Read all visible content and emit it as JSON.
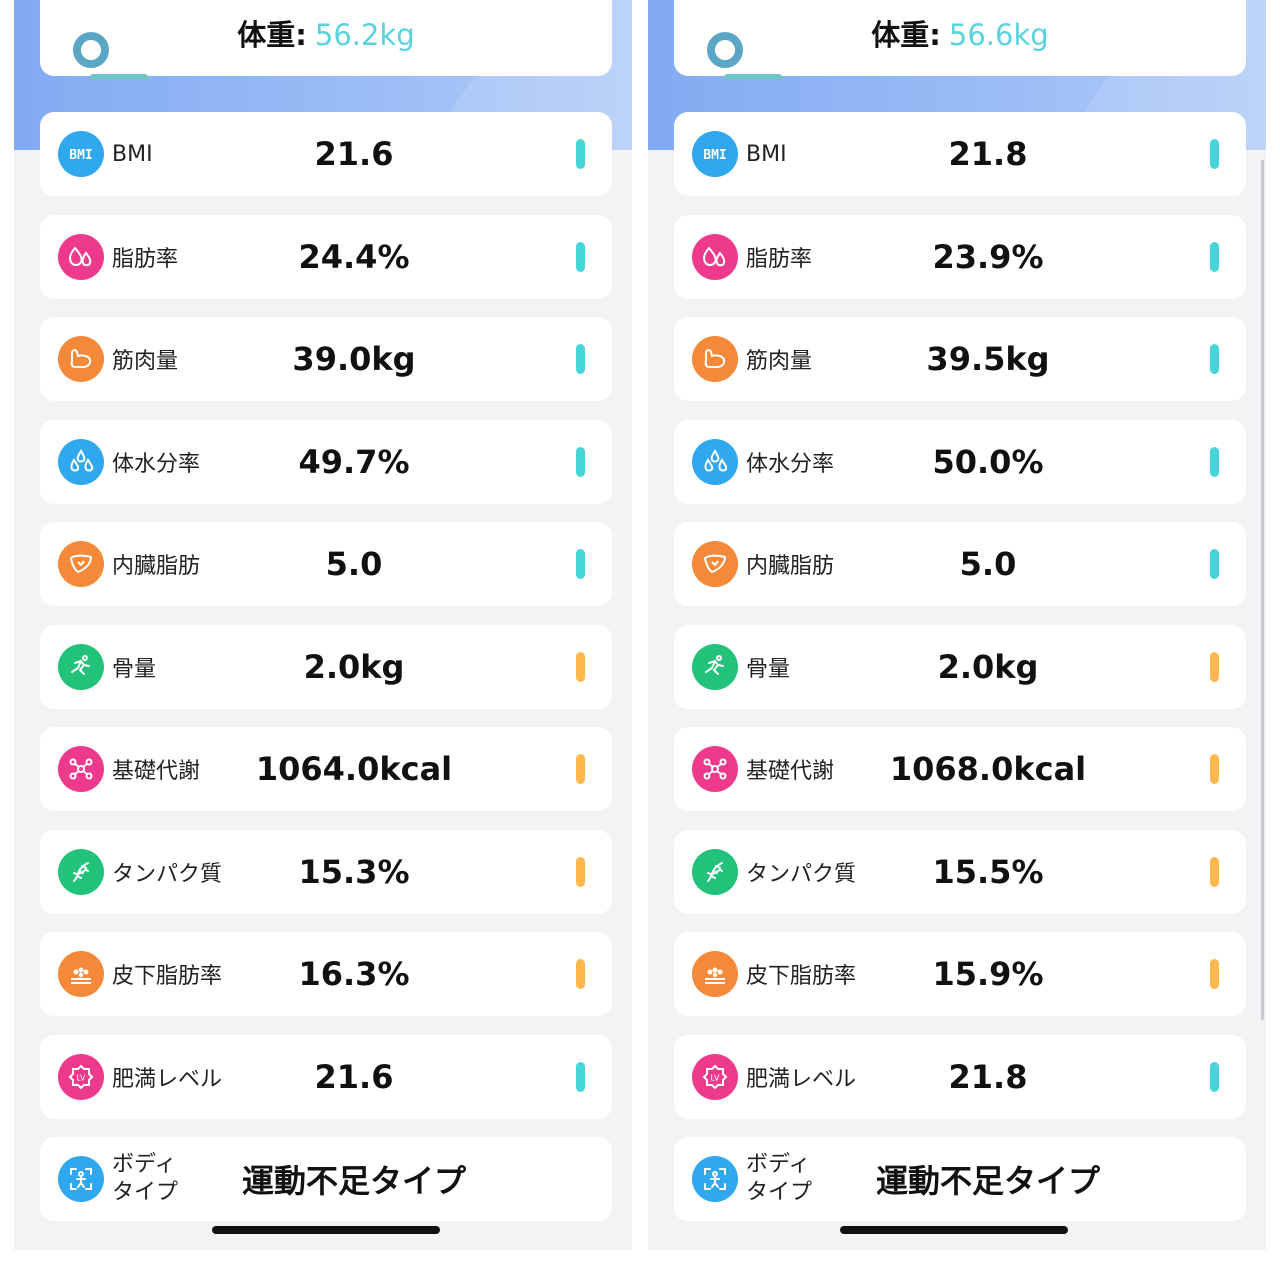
{
  "colors": {
    "accent_weight": "#5ad3de",
    "bar_normal": "#46d6da",
    "bar_warning": "#ffb84d",
    "header_gradient": "#8fb4f4"
  },
  "panels": [
    {
      "weight_label": "体重:",
      "weight_value": "56.2kg",
      "metrics": [
        {
          "label": "BMI",
          "value": "21.6",
          "icon": "bmi-icon",
          "icon_color": "#2fa8f0",
          "status": "teal"
        },
        {
          "label": "脂肪率",
          "value": "24.4%",
          "icon": "fat-drops-icon",
          "icon_color": "#ee3a8c",
          "status": "teal"
        },
        {
          "label": "筋肉量",
          "value": "39.0kg",
          "icon": "muscle-arm-icon",
          "icon_color": "#f5893a",
          "status": "teal"
        },
        {
          "label": "体水分率",
          "value": "49.7%",
          "icon": "water-drops-icon",
          "icon_color": "#2fa8f0",
          "status": "teal"
        },
        {
          "label": "内臓脂肪",
          "value": "5.0",
          "icon": "liver-icon",
          "icon_color": "#f5893a",
          "status": "teal"
        },
        {
          "label": "骨量",
          "value": "2.0kg",
          "icon": "bone-runner-icon",
          "icon_color": "#22c27a",
          "status": "orange"
        },
        {
          "label": "基礎代謝",
          "value": "1064.0kcal",
          "icon": "molecule-icon",
          "icon_color": "#ee3a8c",
          "status": "orange"
        },
        {
          "label": "タンパク質",
          "value": "15.3%",
          "icon": "dna-icon",
          "icon_color": "#22c27a",
          "status": "orange"
        },
        {
          "label": "皮下脂肪率",
          "value": "16.3%",
          "icon": "skin-layer-icon",
          "icon_color": "#f5893a",
          "status": "orange"
        },
        {
          "label": "肥満レベル",
          "value": "21.6",
          "icon": "level-badge-icon",
          "icon_color": "#ee3a8c",
          "status": "teal"
        },
        {
          "label_line1": "ボディ",
          "label_line2": "タイプ",
          "value": "運動不足タイプ",
          "icon": "body-scan-icon",
          "icon_color": "#2fa8f0",
          "status": "none"
        }
      ]
    },
    {
      "weight_label": "体重:",
      "weight_value": "56.6kg",
      "metrics": [
        {
          "label": "BMI",
          "value": "21.8",
          "icon": "bmi-icon",
          "icon_color": "#2fa8f0",
          "status": "teal"
        },
        {
          "label": "脂肪率",
          "value": "23.9%",
          "icon": "fat-drops-icon",
          "icon_color": "#ee3a8c",
          "status": "teal"
        },
        {
          "label": "筋肉量",
          "value": "39.5kg",
          "icon": "muscle-arm-icon",
          "icon_color": "#f5893a",
          "status": "teal"
        },
        {
          "label": "体水分率",
          "value": "50.0%",
          "icon": "water-drops-icon",
          "icon_color": "#2fa8f0",
          "status": "teal"
        },
        {
          "label": "内臓脂肪",
          "value": "5.0",
          "icon": "liver-icon",
          "icon_color": "#f5893a",
          "status": "teal"
        },
        {
          "label": "骨量",
          "value": "2.0kg",
          "icon": "bone-runner-icon",
          "icon_color": "#22c27a",
          "status": "orange"
        },
        {
          "label": "基礎代謝",
          "value": "1068.0kcal",
          "icon": "molecule-icon",
          "icon_color": "#ee3a8c",
          "status": "orange"
        },
        {
          "label": "タンパク質",
          "value": "15.5%",
          "icon": "dna-icon",
          "icon_color": "#22c27a",
          "status": "orange"
        },
        {
          "label": "皮下脂肪率",
          "value": "15.9%",
          "icon": "skin-layer-icon",
          "icon_color": "#f5893a",
          "status": "orange"
        },
        {
          "label": "肥満レベル",
          "value": "21.8",
          "icon": "level-badge-icon",
          "icon_color": "#ee3a8c",
          "status": "teal"
        },
        {
          "label_line1": "ボディ",
          "label_line2": "タイプ",
          "value": "運動不足タイプ",
          "icon": "body-scan-icon",
          "icon_color": "#2fa8f0",
          "status": "none"
        }
      ]
    }
  ]
}
